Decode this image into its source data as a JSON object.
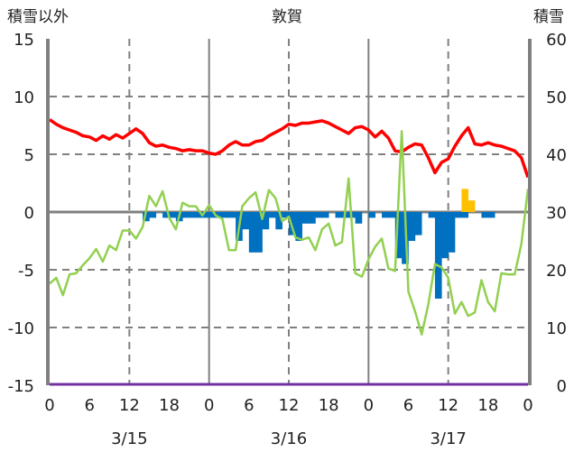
{
  "chart_data": {
    "type": "line",
    "title": "敦賀",
    "ylabel_left": "積雪以外",
    "ylabel_right": "積雪",
    "ylim_left": [
      -15,
      15
    ],
    "ylim_right": [
      0,
      60
    ],
    "yticks_left": [
      15,
      10,
      5,
      0,
      -5,
      -10,
      -15
    ],
    "yticks_right": [
      60,
      50,
      40,
      30,
      20,
      10,
      0
    ],
    "xlim_hours": [
      0,
      72
    ],
    "xtick_labels": [
      "0",
      "6",
      "12",
      "18",
      "0",
      "6",
      "12",
      "18",
      "0",
      "6",
      "12",
      "18",
      "0"
    ],
    "date_labels": [
      "3/15",
      "3/16",
      "3/17"
    ],
    "colors": {
      "temperature": "#ff0000",
      "snow_depth": "#92d050",
      "snow_decrease": "#0070c0",
      "snowfall": "#ffc000",
      "baseline": "#7030a0",
      "grid": "#808080"
    },
    "series": [
      {
        "name": "temperature",
        "axis": "left",
        "values": [
          8.0,
          7.6,
          7.3,
          7.1,
          6.9,
          6.6,
          6.5,
          6.2,
          6.6,
          6.3,
          6.7,
          6.4,
          6.8,
          7.2,
          6.8,
          6.0,
          5.7,
          5.8,
          5.6,
          5.5,
          5.3,
          5.4,
          5.3,
          5.3,
          5.1,
          5.0,
          5.3,
          5.8,
          6.1,
          5.8,
          5.8,
          6.1,
          6.2,
          6.6,
          6.9,
          7.2,
          7.6,
          7.5,
          7.7,
          7.7,
          7.8,
          7.9,
          7.7,
          7.4,
          7.1,
          6.8,
          7.3,
          7.4,
          7.1,
          6.5,
          7.0,
          6.4,
          5.3,
          5.2,
          5.6,
          5.9,
          5.8,
          4.7,
          3.4,
          4.3,
          4.6,
          5.7,
          6.6,
          7.3,
          5.9,
          5.8,
          6.0,
          5.8,
          5.7,
          5.5,
          5.3,
          4.7,
          3.0
        ]
      },
      {
        "name": "snow_depth",
        "axis": "right",
        "values": [
          17.6,
          18.6,
          15.6,
          19.2,
          19.4,
          20.8,
          22.0,
          23.6,
          21.4,
          24.2,
          23.4,
          26.8,
          26.8,
          25.4,
          27.4,
          32.8,
          31.0,
          33.6,
          29.0,
          27.0,
          31.6,
          31.0,
          31.0,
          29.4,
          31.2,
          29.4,
          28.8,
          23.4,
          23.4,
          31.0,
          32.4,
          33.4,
          28.8,
          33.8,
          32.4,
          28.4,
          29.2,
          25.6,
          25.2,
          25.6,
          23.4,
          27.0,
          28.0,
          24.2,
          24.8,
          35.8,
          19.4,
          18.8,
          21.8,
          24.0,
          25.4,
          20.2,
          19.8,
          44.0,
          16.2,
          12.8,
          8.8,
          14.0,
          21.0,
          20.4,
          18.6,
          12.4,
          14.4,
          12.0,
          12.6,
          18.2,
          14.4,
          12.8,
          19.4,
          19.2,
          19.2,
          24.4,
          34.0
        ]
      },
      {
        "name": "snow_decrease",
        "axis": "left",
        "type": "bar",
        "values": {
          "14": -0.8,
          "15": -0.5,
          "17": -0.5,
          "18": -0.5,
          "19": -0.8,
          "20": -0.5,
          "21": -0.5,
          "22": -0.5,
          "23": -0.5,
          "24": -0.5,
          "25": -0.5,
          "26": -0.5,
          "27": -0.5,
          "28": -2.5,
          "29": -1.5,
          "30": -3.5,
          "31": -3.5,
          "32": -1.5,
          "33": -0.5,
          "34": -1.5,
          "35": -0.5,
          "36": -2.0,
          "37": -2.5,
          "38": -1.0,
          "39": -1.0,
          "40": -0.5,
          "41": -0.5,
          "43": -0.5,
          "44": -0.5,
          "45": -0.5,
          "46": -1.0,
          "48": -0.5,
          "50": -0.5,
          "51": -0.5,
          "52": -4.0,
          "53": -4.5,
          "54": -2.5,
          "55": -2.0,
          "57": -0.5,
          "58": -7.5,
          "59": -4.0,
          "60": -3.5,
          "61": -0.5,
          "62": -0.5,
          "65": -0.5,
          "66": -0.5
        }
      },
      {
        "name": "snowfall",
        "axis": "left",
        "type": "bar",
        "values": {
          "62": 2.0,
          "63": 1.0
        }
      },
      {
        "name": "baseline",
        "axis": "right",
        "values": [
          0,
          0
        ]
      }
    ]
  }
}
